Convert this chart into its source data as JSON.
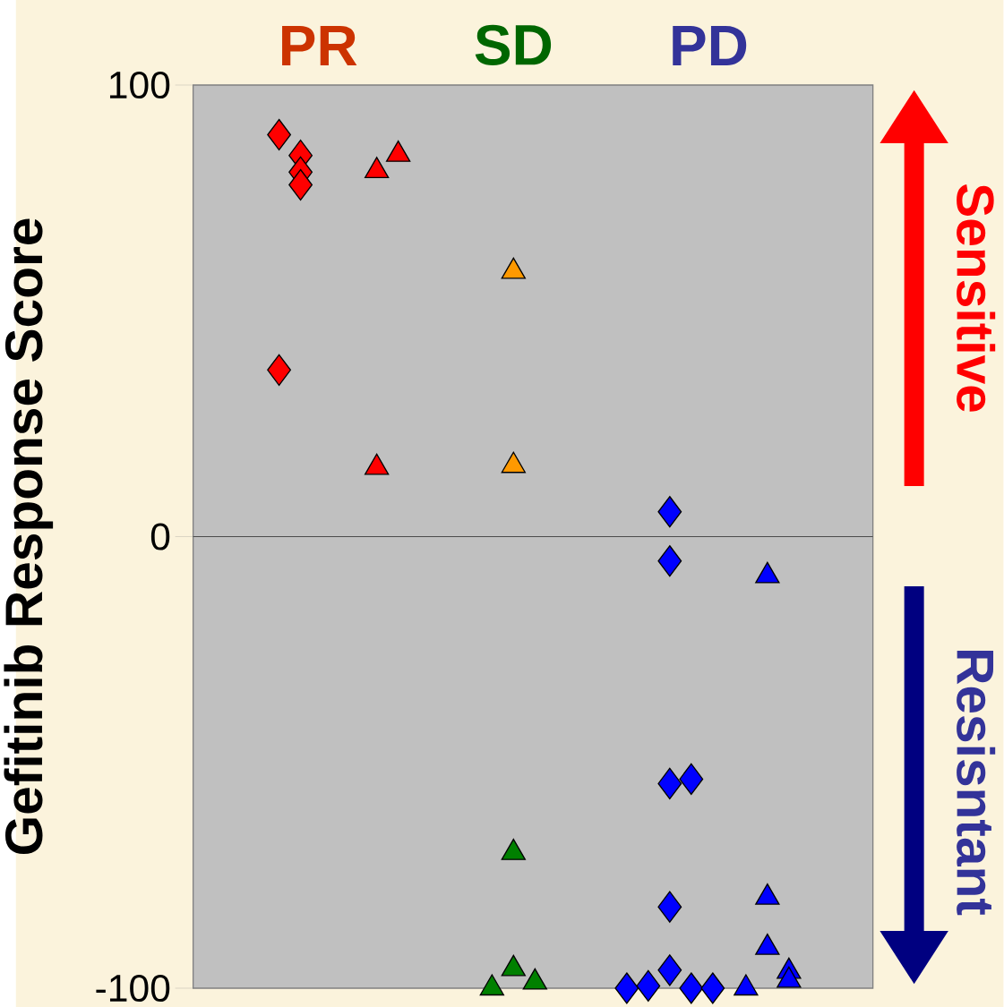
{
  "chart_data": {
    "type": "scatter",
    "ylabel": "Gefitinib Response Score",
    "categories": [
      "PR",
      "SD",
      "PD"
    ],
    "ylim": [
      -100,
      100
    ],
    "yticks": [
      -100,
      0,
      100
    ],
    "ref_lines": [
      {
        "axis": "y",
        "value": 0
      }
    ],
    "annotations": [
      "Sensitive",
      "Resisntant"
    ],
    "series": [
      {
        "color": "#ff0000",
        "marker": "diamond",
        "x": [
          "PR",
          "PR",
          "PR",
          "PR",
          "PR"
        ],
        "values": [
          89,
          84.4,
          80.7,
          77.9,
          36.9
        ]
      },
      {
        "color": "#ff0000",
        "marker": "triangle",
        "x": [
          "PR",
          "PR",
          "PR"
        ],
        "values": [
          81,
          84.6,
          15.3
        ]
      },
      {
        "color": "#ff9900",
        "marker": "triangle",
        "x": [
          "SD",
          "SD"
        ],
        "values": [
          58.7,
          15.7
        ]
      },
      {
        "color": "#008000",
        "marker": "triangle",
        "x": [
          "SD",
          "SD",
          "SD",
          "SD"
        ],
        "values": [
          -70,
          -95.7,
          -98.7,
          -100
        ]
      },
      {
        "color": "#0000ff",
        "marker": "diamond",
        "x": [
          "PD",
          "PD",
          "PD",
          "PD",
          "PD",
          "PD",
          "PD",
          "PD",
          "PD",
          "PD"
        ],
        "values": [
          5.5,
          -5.4,
          -54.7,
          -53.7,
          -82,
          -96,
          -100,
          -99.5,
          -100,
          -100
        ]
      },
      {
        "color": "#0000ff",
        "marker": "triangle",
        "x": [
          "PD",
          "PD",
          "PD",
          "PD",
          "PD",
          "PD"
        ],
        "values": [
          -8.7,
          -79.9,
          -91,
          -96.3,
          -98.3,
          -100
        ]
      }
    ]
  }
}
